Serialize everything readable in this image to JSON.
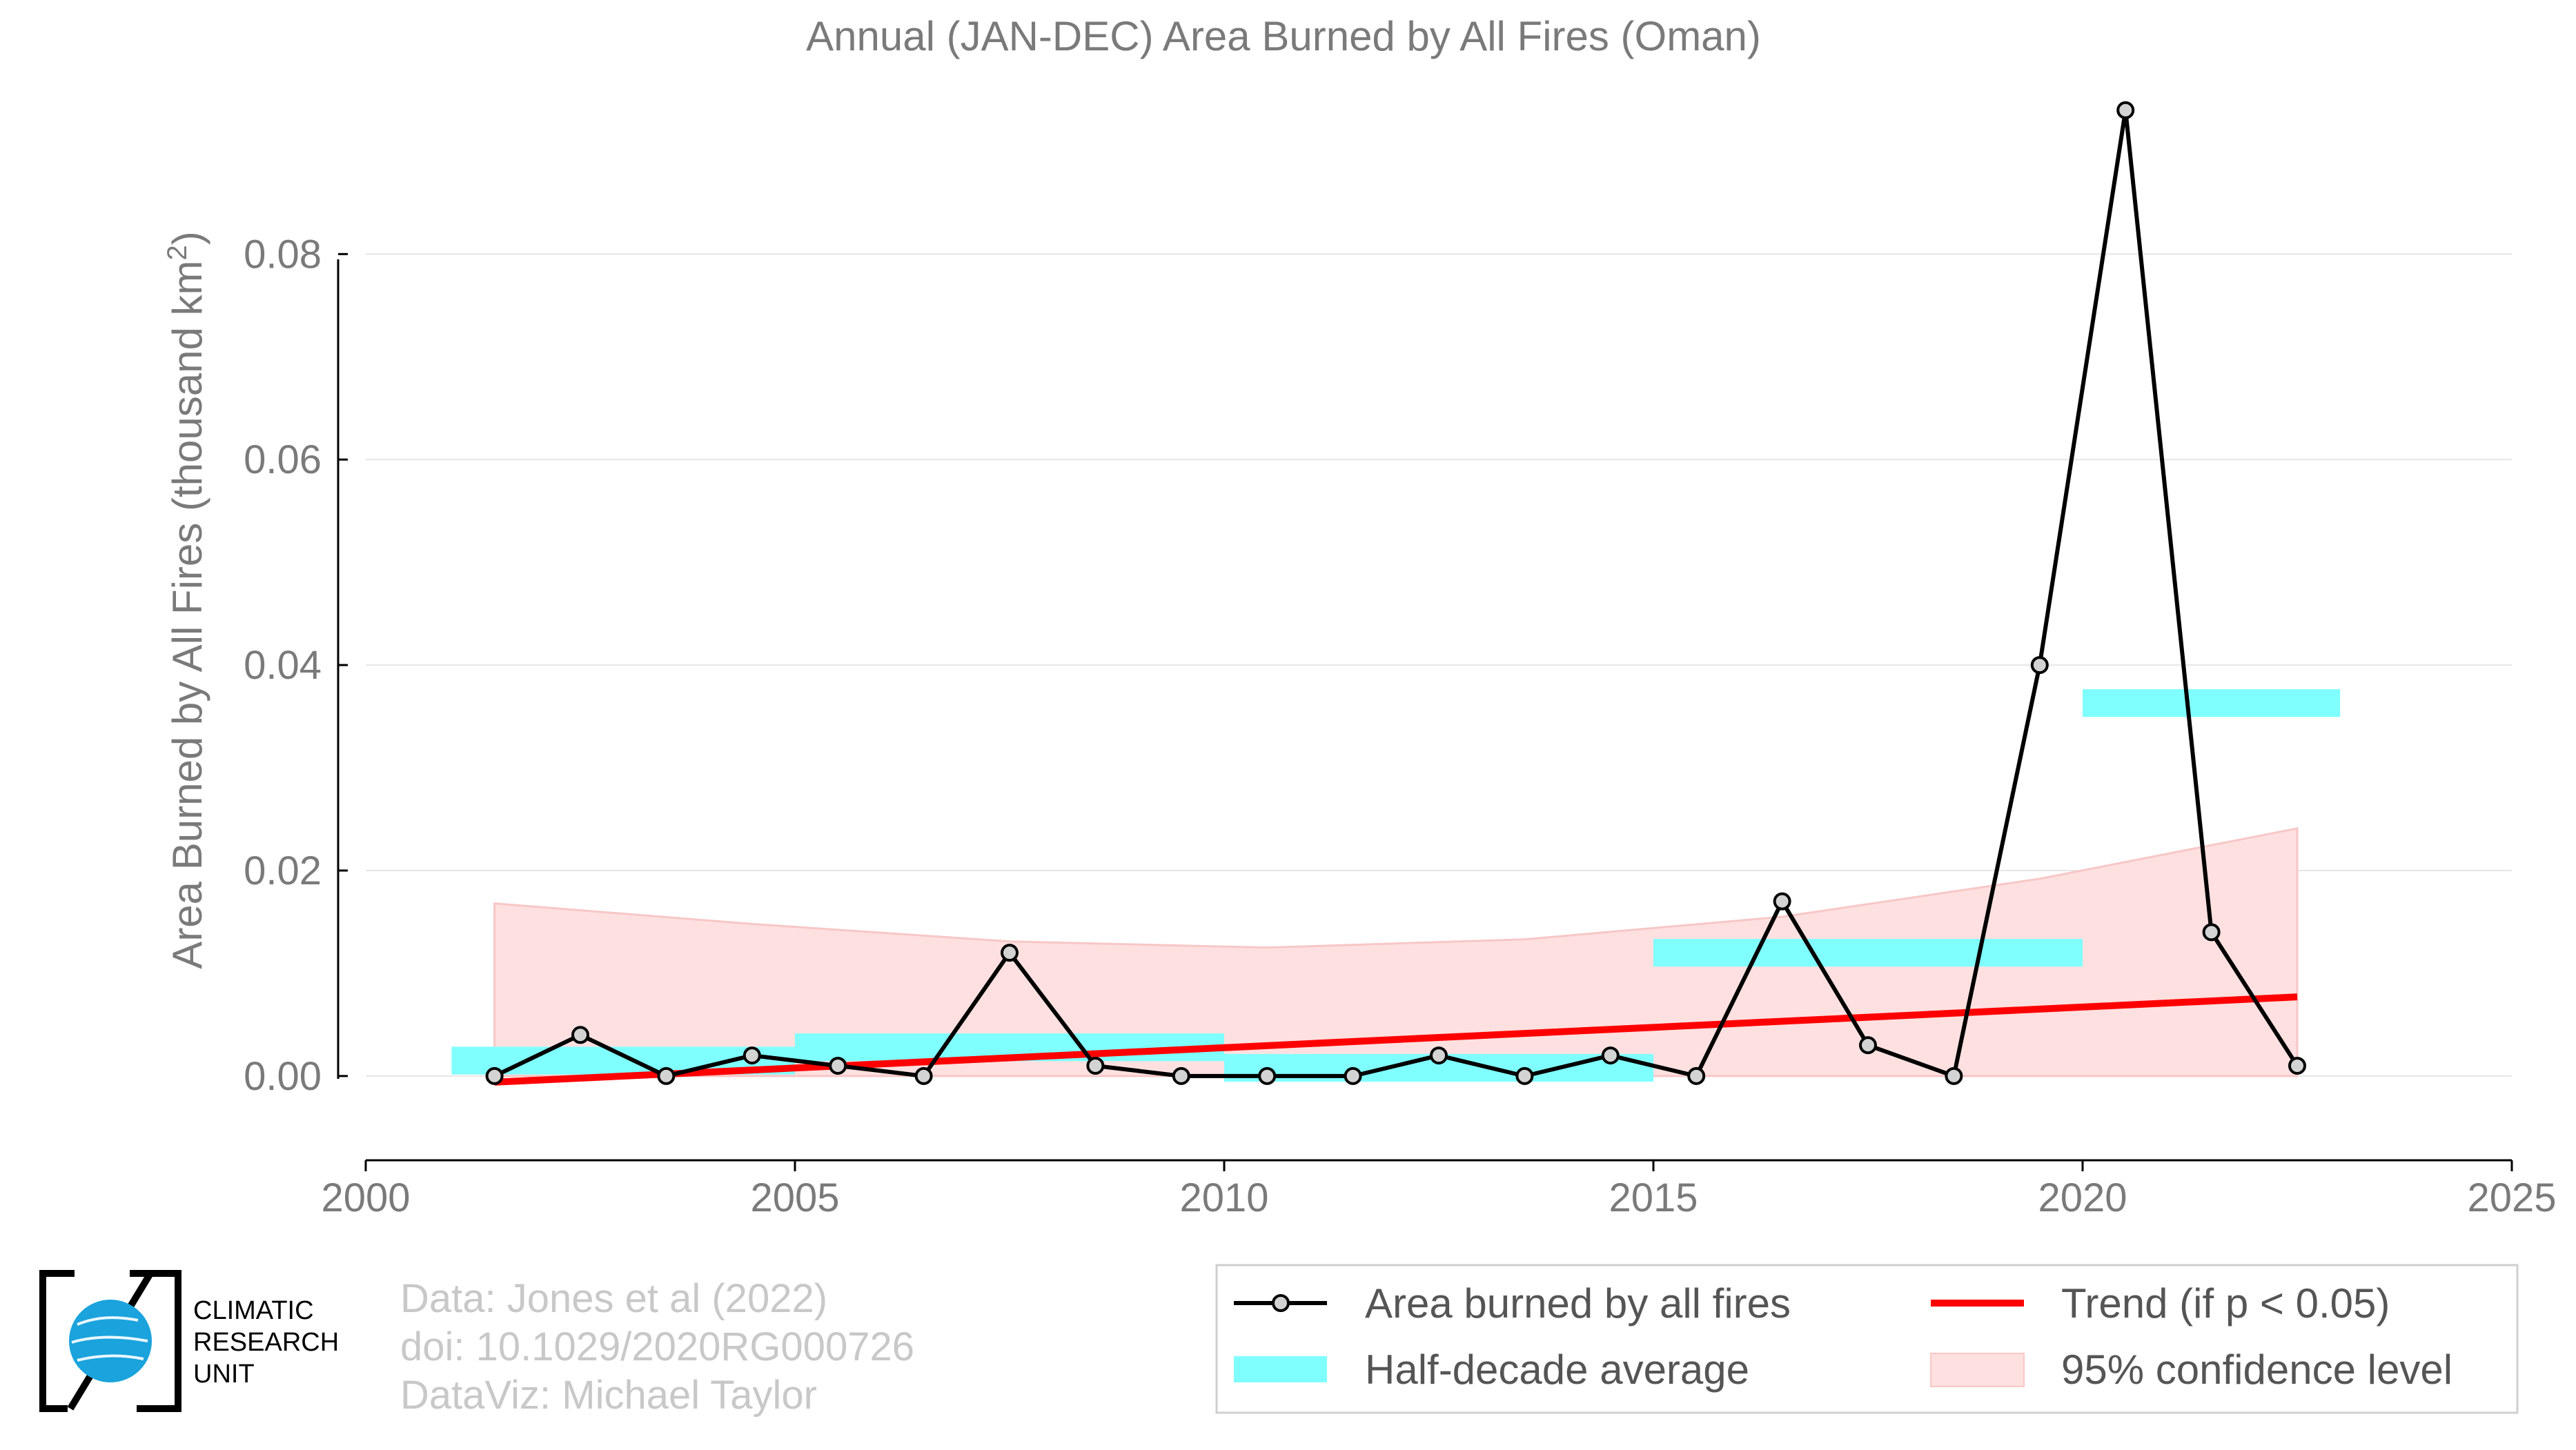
{
  "chart_data": {
    "type": "line",
    "title": "Annual (JAN-DEC) Area Burned by All Fires (Oman)",
    "ylabel_main": "Area Burned by All Fires (thousand km",
    "ylabel_sup": "2",
    "ylabel_close": ")",
    "xlim": [
      2000,
      2025
    ],
    "ylim": [
      -0.0082,
      0.096
    ],
    "x_ticks": [
      2000,
      2005,
      2010,
      2015,
      2020,
      2025
    ],
    "x_tick_labels": [
      "2000",
      "2005",
      "2010",
      "2015",
      "2020",
      "2025"
    ],
    "y_ticks": [
      0.0,
      0.02,
      0.04,
      0.06,
      0.08
    ],
    "y_tick_labels": [
      "0.00",
      "0.02",
      "0.04",
      "0.06",
      "0.08"
    ],
    "grid": "horizontal",
    "legend_position": "bottom-right",
    "series": [
      {
        "name": "Area burned by all fires",
        "type": "line-markers",
        "color": "#000000",
        "marker_fill": "#d3d3d3",
        "x": [
          2001.5,
          2002.5,
          2003.5,
          2004.5,
          2005.5,
          2006.5,
          2007.5,
          2008.5,
          2009.5,
          2010.5,
          2011.5,
          2012.5,
          2013.5,
          2014.5,
          2015.5,
          2016.5,
          2017.5,
          2018.5,
          2019.5,
          2020.5,
          2021.5,
          2022.5
        ],
        "y": [
          0.0,
          0.004,
          0.0,
          0.002,
          0.001,
          0.0,
          0.012,
          0.001,
          0.0,
          0.0,
          0.0,
          0.002,
          0.0,
          0.002,
          0.0,
          0.017,
          0.003,
          0.0,
          0.04,
          0.094,
          0.014,
          0.001
        ]
      },
      {
        "name": "Half-decade average",
        "type": "bars",
        "color": "#80ffff",
        "segments": [
          {
            "x0": 2001,
            "x1": 2005,
            "y": 0.0015
          },
          {
            "x0": 2005,
            "x1": 2010,
            "y": 0.0028
          },
          {
            "x0": 2010,
            "x1": 2015,
            "y": 0.0008
          },
          {
            "x0": 2015,
            "x1": 2020,
            "y": 0.012
          },
          {
            "x0": 2020,
            "x1": 2023,
            "y": 0.0363
          }
        ]
      },
      {
        "name": "Trend (if p < 0.05)",
        "type": "trend",
        "color": "#ff0000",
        "x": [
          2001.5,
          2022.5
        ],
        "y": [
          -0.0006,
          0.0077
        ]
      },
      {
        "name": "95% confidence level",
        "type": "band",
        "color": "#ffe0e0",
        "edge_color": "#f7c7c7",
        "x": [
          2001.5,
          2004.5,
          2007.5,
          2010.5,
          2013.5,
          2016.5,
          2019.5,
          2022.5
        ],
        "upper": [
          0.0168,
          0.0148,
          0.0131,
          0.0125,
          0.0133,
          0.0155,
          0.0192,
          0.0241
        ],
        "lower": [
          0,
          0,
          0,
          0,
          0,
          0,
          0,
          0
        ]
      }
    ]
  },
  "credits": {
    "line1": "Data: Jones et al (2022)",
    "line2": "doi: 10.1029/2020RG000726",
    "line3": "DataViz: Michael Taylor"
  },
  "logo": {
    "line1": "CLIMATIC",
    "line2": "RESEARCH",
    "line3": "UNIT",
    "globe_color": "#1aa3dc"
  }
}
